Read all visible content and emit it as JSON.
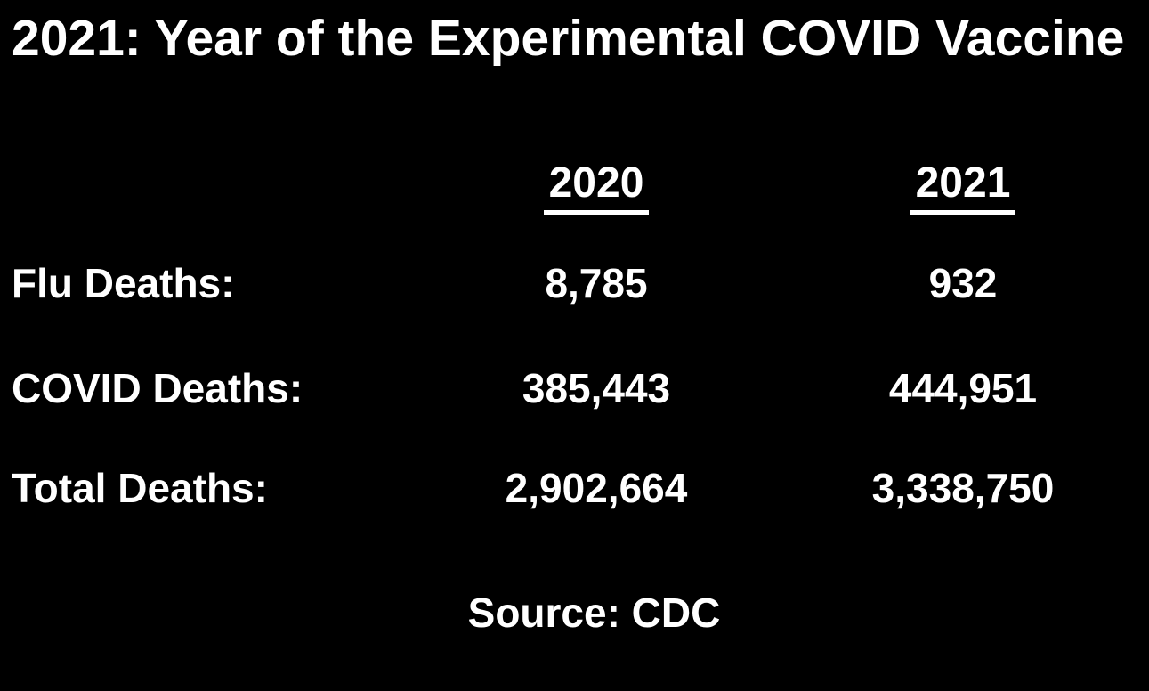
{
  "page": {
    "background_color": "#000000",
    "text_color": "#ffffff"
  },
  "title": "2021: Year of the Experimental COVID Vaccine",
  "chart_data": {
    "type": "table",
    "title": "2021: Year of the Experimental COVID Vaccine",
    "columns": [
      "2020",
      "2021"
    ],
    "rows": [
      {
        "label": "Flu Deaths:",
        "values": [
          "8,785",
          "932"
        ]
      },
      {
        "label": "COVID Deaths:",
        "values": [
          "385,443",
          "444,951"
        ]
      },
      {
        "label": "Total Deaths:",
        "values": [
          "2,902,664",
          "3,338,750"
        ]
      }
    ],
    "numeric_rows": [
      {
        "label": "Flu Deaths",
        "y2020": 8785,
        "y2021": 932
      },
      {
        "label": "COVID Deaths",
        "y2020": 385443,
        "y2021": 444951
      },
      {
        "label": "Total Deaths",
        "y2020": 2902664,
        "y2021": 3338750
      }
    ],
    "source": "Source: CDC",
    "layout": {
      "header_underline": true,
      "background": "#000000",
      "text_color": "#ffffff"
    }
  },
  "table": {
    "headers": {
      "col2020": "2020",
      "col2021": "2021"
    },
    "rows": {
      "flu": {
        "label": "Flu Deaths:",
        "v2020": "8,785",
        "v2021": "932"
      },
      "covid": {
        "label": "COVID Deaths:",
        "v2020": "385,443",
        "v2021": "444,951"
      },
      "total": {
        "label": "Total Deaths:",
        "v2020": "2,902,664",
        "v2021": "3,338,750"
      }
    }
  },
  "source": {
    "label": "Source: CDC"
  }
}
